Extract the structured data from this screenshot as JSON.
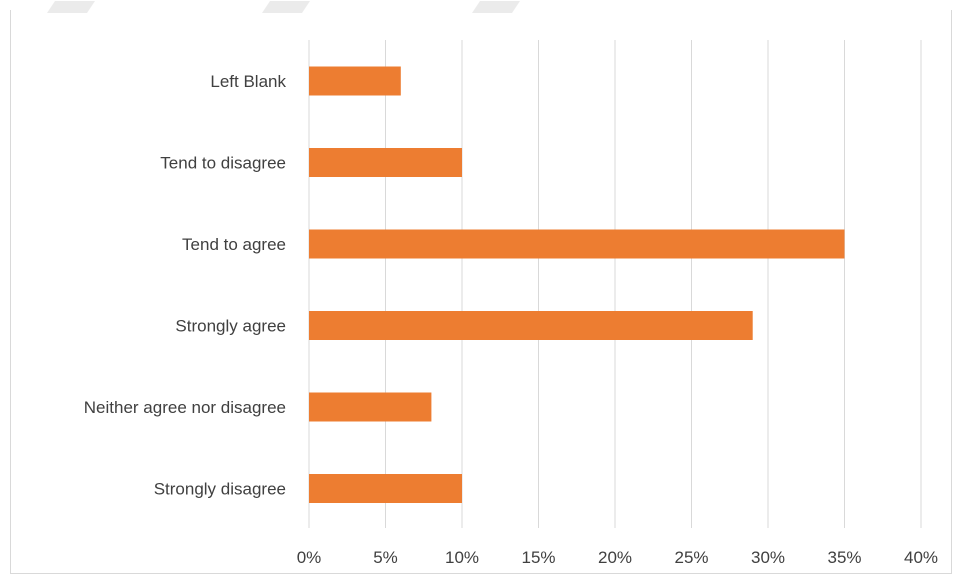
{
  "chart_data": {
    "type": "bar",
    "orientation": "horizontal",
    "categories": [
      "Left Blank",
      "Tend to disagree",
      "Tend to agree",
      "Strongly agree",
      "Neither agree nor disagree",
      "Strongly disagree"
    ],
    "values": [
      6,
      10,
      35,
      29,
      8,
      10
    ],
    "x_ticks": [
      "0%",
      "5%",
      "10%",
      "15%",
      "20%",
      "25%",
      "30%",
      "35%",
      "40%"
    ],
    "xlim": [
      0,
      40
    ],
    "x_grid": true,
    "legend": "none",
    "title": "",
    "xlabel": "",
    "ylabel": "",
    "bar_color": "#ed7d31",
    "grid_color": "#d9d9d9"
  }
}
